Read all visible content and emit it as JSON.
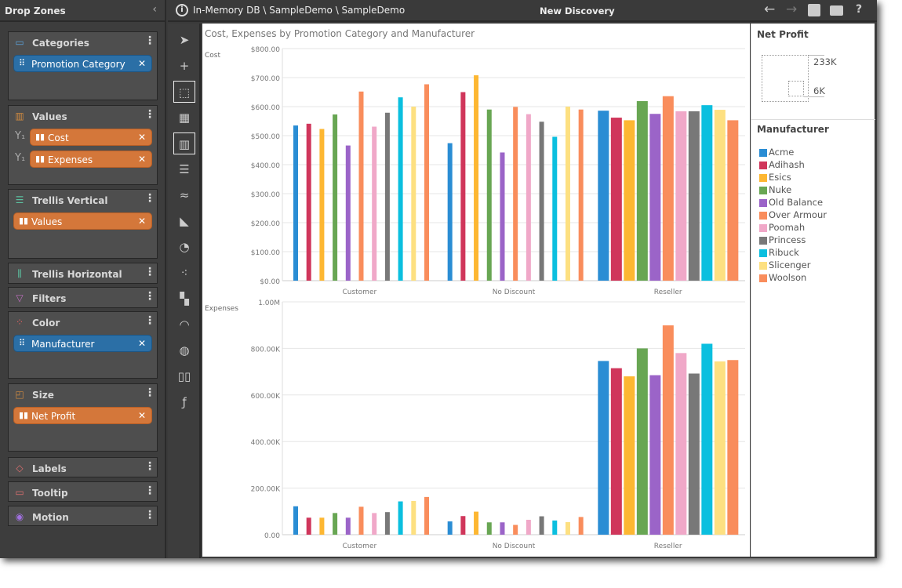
{
  "left_panel": {
    "title": "Drop Zones",
    "zones": [
      {
        "name": "categories",
        "label": "Categories",
        "icon": "categories-icon",
        "pills": [
          {
            "label": "Promotion Category",
            "type": "dimension"
          }
        ]
      },
      {
        "name": "values",
        "label": "Values",
        "icon": "values-icon",
        "pills": [
          {
            "label": "Cost",
            "type": "measure",
            "axis": "Y1"
          },
          {
            "label": "Expenses",
            "type": "measure",
            "axis": "Y1"
          }
        ]
      },
      {
        "name": "trellis-vertical",
        "label": "Trellis Vertical",
        "icon": "trellis-vertical-icon",
        "pills": [
          {
            "label": "Values",
            "type": "measure"
          }
        ]
      },
      {
        "name": "trellis-horizontal",
        "label": "Trellis Horizontal",
        "icon": "trellis-horizontal-icon",
        "pills": []
      },
      {
        "name": "filters",
        "label": "Filters",
        "icon": "filter-icon",
        "pills": []
      },
      {
        "name": "color",
        "label": "Color",
        "icon": "color-icon",
        "pills": [
          {
            "label": "Manufacturer",
            "type": "dimension"
          }
        ]
      },
      {
        "name": "size",
        "label": "Size",
        "icon": "size-icon",
        "pills": [
          {
            "label": "Net Profit",
            "type": "measure"
          }
        ]
      },
      {
        "name": "labels",
        "label": "Labels",
        "icon": "tag-icon",
        "pills": []
      },
      {
        "name": "tooltip",
        "label": "Tooltip",
        "icon": "tooltip-icon",
        "pills": []
      },
      {
        "name": "motion",
        "label": "Motion",
        "icon": "play-icon",
        "pills": []
      }
    ]
  },
  "header": {
    "breadcrumb": "In-Memory DB \\ SampleDemo \\ SampleDemo",
    "title": "New Discovery"
  },
  "legend": {
    "size_title": "Net Profit",
    "size_max": "233K",
    "size_min": "6K",
    "color_title": "Manufacturer"
  },
  "colors": {
    "Acme": "#2a8dd4",
    "Adihash": "#d0365b",
    "Esics": "#fdb732",
    "Nuke": "#68a653",
    "Old Balance": "#9b64c8",
    "Over Armour": "#f98d5c",
    "Poomah": "#f0a8c8",
    "Princess": "#787878",
    "Ribuck": "#0bbfdf",
    "Slicenger": "#fde081",
    "Woolson": "#f98d5c"
  },
  "chart_data": {
    "type": "bar",
    "title": "Cost, Expenses by Promotion Category and Manufacturer",
    "categories": [
      "Customer",
      "No Discount",
      "Reseller"
    ],
    "series_names": [
      "Acme",
      "Adihash",
      "Esics",
      "Nuke",
      "Old Balance",
      "Over Armour",
      "Poomah",
      "Princess",
      "Ribuck",
      "Slicenger",
      "Woolson"
    ],
    "panels": [
      {
        "ylabel": "Cost",
        "ylim": [
          0,
          800
        ],
        "ticks": [
          "$0.00",
          "$100.00",
          "$200.00",
          "$300.00",
          "$400.00",
          "$500.00",
          "$600.00",
          "$700.00",
          "$800.00"
        ],
        "values": {
          "Customer": [
            535,
            541,
            523,
            573,
            466,
            652,
            531,
            579,
            632,
            600,
            677
          ],
          "No Discount": [
            474,
            650,
            708,
            590,
            442,
            599,
            574,
            548,
            496,
            600,
            590
          ],
          "Reseller": [
            586,
            562,
            553,
            619,
            575,
            636,
            584,
            584,
            605,
            589,
            553
          ]
        }
      },
      {
        "ylabel": "Expenses",
        "ylim": [
          0,
          1000000
        ],
        "ticks": [
          "0.00",
          "200.00K",
          "400.00K",
          "600.00K",
          "800.00K",
          "1.00M"
        ],
        "values": {
          "Customer": [
            122000,
            73000,
            73000,
            93000,
            73000,
            120000,
            93000,
            97000,
            143000,
            145000,
            162000
          ],
          "No Discount": [
            57000,
            80000,
            99000,
            53000,
            53000,
            42000,
            64000,
            79000,
            61000,
            54000,
            76000
          ],
          "Reseller": [
            746000,
            715000,
            680000,
            800000,
            685000,
            899000,
            780000,
            692000,
            820000,
            744000,
            750000
          ]
        }
      }
    ],
    "grid": true,
    "legend": "right"
  }
}
